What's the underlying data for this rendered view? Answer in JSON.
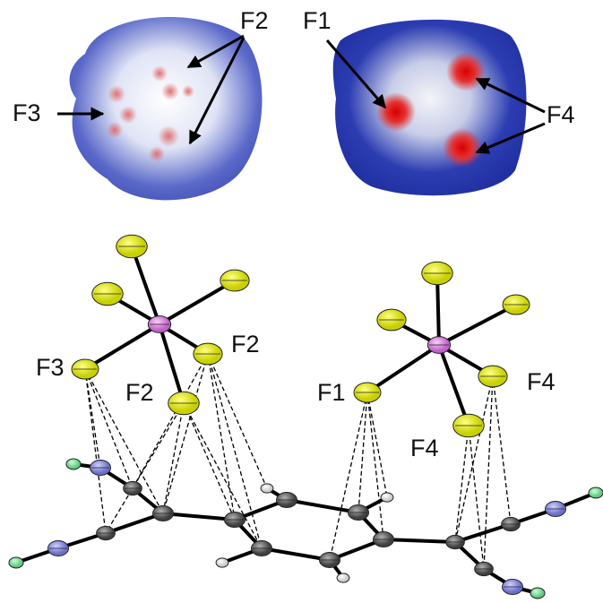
{
  "hirshfeld_surfaces": {
    "labels": [
      "F2",
      "F3",
      "F1",
      "F4"
    ]
  },
  "crystal_structure": {
    "labels": [
      "F3",
      "F2",
      "F2",
      "F1",
      "F4",
      "F4"
    ]
  }
}
